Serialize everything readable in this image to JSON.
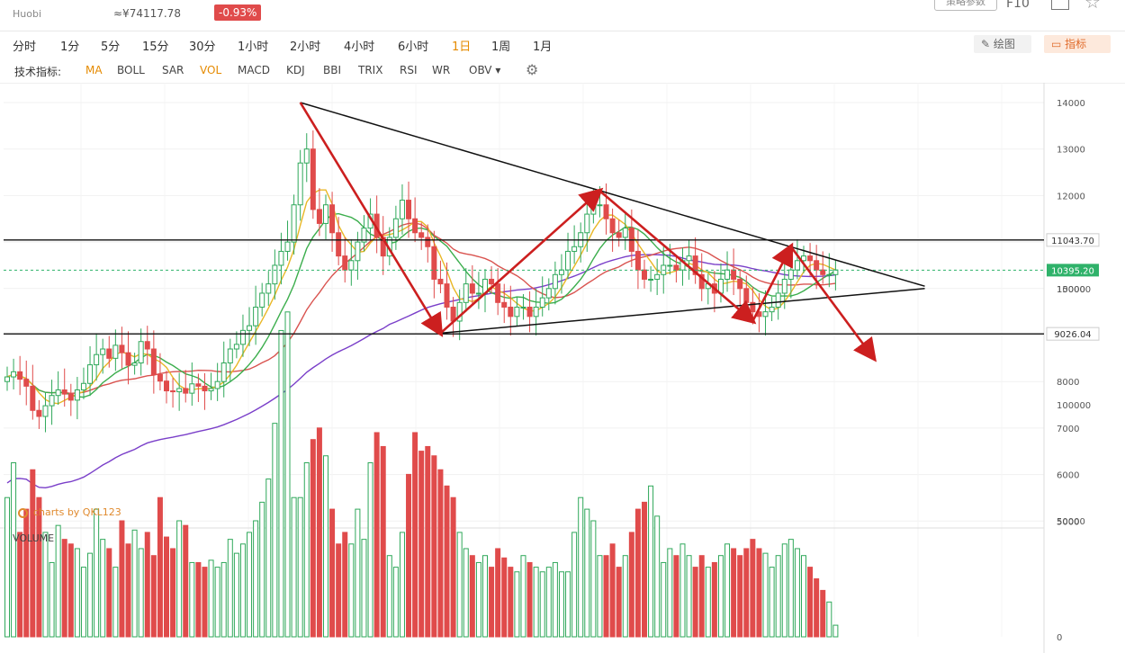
{
  "header": {
    "exchange": "Huobi",
    "price_cny": "≈¥74117.78",
    "change": "-0.93%",
    "tool_button": "策略参数",
    "f10": "F10"
  },
  "periods": [
    "分时",
    "1分",
    "5分",
    "15分",
    "30分",
    "1小时",
    "2小时",
    "4小时",
    "6小时",
    "1日",
    "1周",
    "1月"
  ],
  "active_period": "1日",
  "tools": {
    "draw": "绘图",
    "indicator": "指标"
  },
  "indicator_bar": {
    "label": "技术指标:",
    "items": [
      "MA",
      "BOLL",
      "SAR",
      "VOL",
      "MACD",
      "KDJ",
      "BBI",
      "TRIX",
      "RSI",
      "WR",
      "OBV"
    ],
    "active": [
      "MA",
      "VOL"
    ]
  },
  "volume_label": "VOLUME",
  "watermark": "charts by QKL123",
  "colors": {
    "up": "#2fa85a",
    "down": "#e04b4b",
    "ma5": "#e9b726",
    "ma10": "#3cae4d",
    "ma20": "#d9534f",
    "ma60": "#7a3fc9",
    "annotation": "#cc1f1f",
    "current_price": "#2fb26a"
  },
  "chart_data": {
    "type": "candlestick",
    "price_axis": {
      "ylim": [
        5000,
        14000
      ],
      "ticks": [
        14000,
        13000,
        12000,
        11000,
        10000,
        9000,
        8000,
        7000,
        6000,
        5000
      ]
    },
    "volume_axis": {
      "ylim": [
        0,
        150000
      ],
      "ticks": [
        150000,
        100000,
        50000,
        0
      ]
    },
    "levels": {
      "resistance": "11043.70",
      "support": "9026.04",
      "current": "10395.20"
    },
    "closes": [
      8100,
      8210,
      8050,
      7900,
      7380,
      7250,
      7480,
      7700,
      7820,
      7730,
      7600,
      7820,
      7960,
      8360,
      8580,
      8700,
      8500,
      8780,
      8620,
      8350,
      8400,
      8860,
      8700,
      8150,
      8010,
      7800,
      7780,
      7850,
      7750,
      7950,
      7900,
      7800,
      7850,
      8000,
      8400,
      8700,
      8800,
      9100,
      9200,
      9600,
      9900,
      10100,
      10500,
      10800,
      11000,
      11800,
      12700,
      13000,
      11700,
      11400,
      11800,
      11200,
      10700,
      10400,
      10600,
      11000,
      11300,
      11600,
      11100,
      10700,
      11100,
      11500,
      11900,
      11500,
      11200,
      11100,
      10900,
      10200,
      10100,
      9600,
      9300,
      9700,
      10100,
      9900,
      9900,
      10200,
      10100,
      9700,
      9600,
      9400,
      9600,
      9600,
      9400,
      9600,
      9800,
      10000,
      10300,
      10400,
      10800,
      10900,
      11200,
      11600,
      11800,
      11800,
      11500,
      11200,
      11100,
      11300,
      10800,
      10400,
      10200,
      10200,
      10300,
      10500,
      10500,
      10400,
      10600,
      10700,
      10300,
      10000,
      10100,
      9900,
      10200,
      10400,
      10200,
      10000,
      9700,
      9500,
      9400,
      9500,
      9600,
      9900,
      10200,
      10400,
      10600,
      10700,
      10600,
      10400,
      10300,
      10300,
      10400
    ],
    "volumes": [
      60000,
      75000,
      45000,
      55000,
      72000,
      60000,
      45000,
      32000,
      48000,
      42000,
      40000,
      38000,
      30000,
      36000,
      55000,
      42000,
      38000,
      30000,
      50000,
      40000,
      46000,
      38000,
      45000,
      35000,
      60000,
      43000,
      38000,
      50000,
      48000,
      32000,
      32000,
      30000,
      33000,
      30000,
      32000,
      42000,
      36000,
      40000,
      45000,
      50000,
      58000,
      68000,
      92000,
      132000,
      140000,
      60000,
      60000,
      75000,
      85000,
      90000,
      78000,
      55000,
      40000,
      45000,
      40000,
      55000,
      42000,
      75000,
      88000,
      82000,
      35000,
      30000,
      45000,
      70000,
      88000,
      80000,
      82000,
      78000,
      72000,
      65000,
      60000,
      45000,
      38000,
      35000,
      32000,
      35000,
      30000,
      38000,
      34000,
      30000,
      28000,
      35000,
      32000,
      30000,
      28000,
      30000,
      32000,
      28000,
      28000,
      45000,
      60000,
      55000,
      50000,
      35000,
      35000,
      40000,
      30000,
      35000,
      45000,
      55000,
      58000,
      65000,
      52000,
      32000,
      38000,
      35000,
      40000,
      35000,
      30000,
      35000,
      30000,
      32000,
      35000,
      40000,
      38000,
      35000,
      38000,
      42000,
      38000,
      36000,
      30000,
      35000,
      40000,
      42000,
      38000,
      35000,
      30000,
      25000,
      20000,
      15000,
      5000
    ],
    "annotation_lines": {
      "triangle_upper": [
        {
          "date_index": 46,
          "price": 14000
        },
        {
          "date_index": 144,
          "price": 10050
        }
      ],
      "triangle_lower": [
        {
          "date_index": 68,
          "price": 9040
        },
        {
          "date_index": 144,
          "price": 10000
        }
      ],
      "arrows": [
        [
          {
            "date_index": 46,
            "price": 14000
          },
          {
            "date_index": 68,
            "price": 9040
          }
        ],
        [
          {
            "date_index": 68,
            "price": 9040
          },
          {
            "date_index": 93,
            "price": 12100
          }
        ],
        [
          {
            "date_index": 93,
            "price": 12100
          },
          {
            "date_index": 117,
            "price": 9300
          }
        ],
        [
          {
            "date_index": 117,
            "price": 9300
          },
          {
            "date_index": 123,
            "price": 10900
          }
        ],
        [
          {
            "date_index": 123,
            "price": 10900
          },
          {
            "date_index": 136,
            "price": 8500
          }
        ]
      ]
    }
  }
}
